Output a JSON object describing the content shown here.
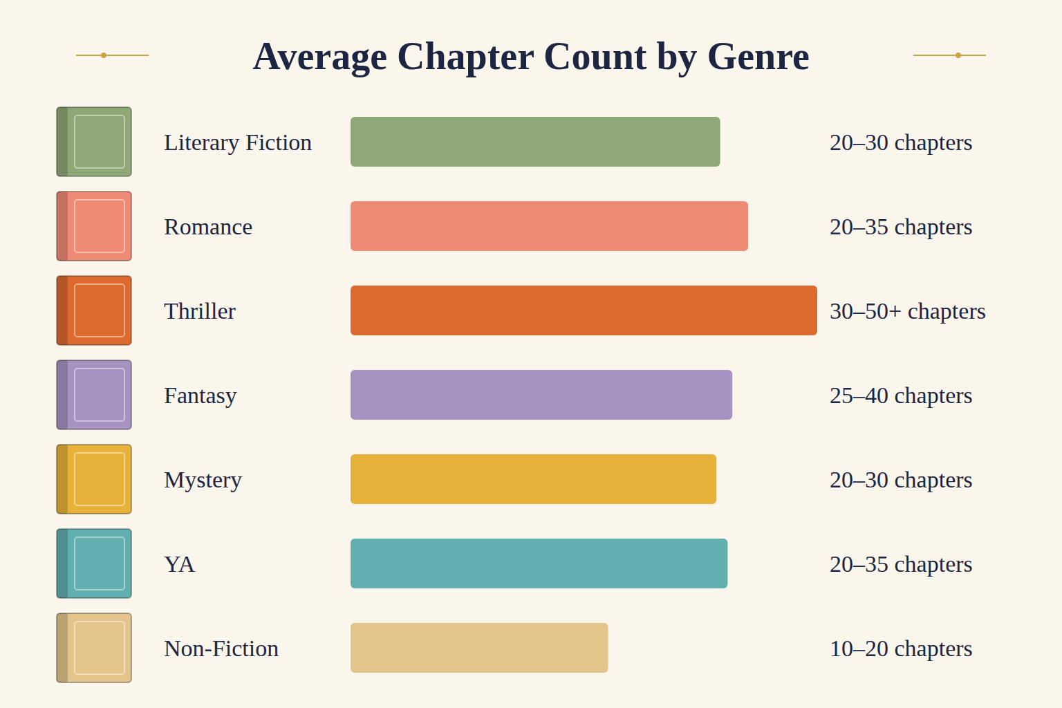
{
  "chart_data": {
    "type": "bar",
    "title": "Average Chapter Count by Genre",
    "orientation": "horizontal",
    "categories": [
      "Literary Fiction",
      "Romance",
      "Thriller",
      "Fantasy",
      "Mystery",
      "YA",
      "Non-Fiction"
    ],
    "values": [
      39.6,
      42.6,
      50,
      40.9,
      39.2,
      40.4,
      27.6
    ],
    "range_labels": [
      "20–30 chapters",
      "20–35 chapters",
      "30–50+ chapters",
      "25–40 chapters",
      "20–30 chapters",
      "20–35 chapters",
      "10–20 chapters"
    ],
    "colors": [
      "#8fa878",
      "#ef8a75",
      "#dc6a2e",
      "#a892c2",
      "#e8b23a",
      "#62afb0",
      "#e3c58c"
    ],
    "xlim": [
      0,
      50
    ],
    "tick_labels": false,
    "grid": false
  }
}
